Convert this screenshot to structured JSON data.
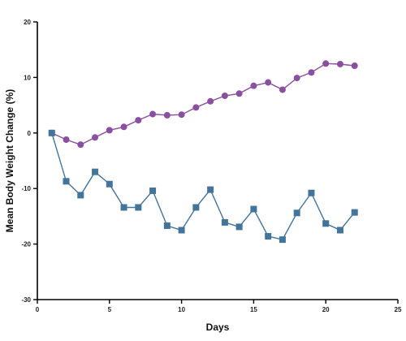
{
  "chart_data": {
    "type": "line",
    "title": "",
    "xlabel": "Days",
    "ylabel": "Mean Body Weight Change (%)",
    "xlim": [
      0,
      25
    ],
    "ylim": [
      -30,
      20
    ],
    "x_ticks": [
      0,
      5,
      10,
      15,
      20,
      25
    ],
    "y_ticks": [
      -30,
      -20,
      -10,
      0,
      10,
      20
    ],
    "grid": false,
    "legend": "none",
    "x": [
      1,
      2,
      3,
      4,
      5,
      6,
      7,
      8,
      9,
      10,
      11,
      12,
      13,
      14,
      15,
      16,
      17,
      18,
      19,
      20,
      21,
      22
    ],
    "series": [
      {
        "color": "#8a4f9e",
        "marker": "circle",
        "values": [
          0,
          -1.2,
          -2.1,
          -0.8,
          0.5,
          1.1,
          2.3,
          3.4,
          3.2,
          3.3,
          4.6,
          5.7,
          6.7,
          7.1,
          8.5,
          9.1,
          7.8,
          9.9,
          10.9,
          12.5,
          12.4,
          12.1
        ]
      },
      {
        "color": "#43749a",
        "marker": "square",
        "values": [
          0,
          -8.7,
          -11.2,
          -7.0,
          -9.2,
          -13.4,
          -13.4,
          -10.4,
          -16.7,
          -17.5,
          -13.4,
          -10.2,
          -16.1,
          -16.9,
          -13.7,
          -18.6,
          -19.2,
          -14.4,
          -10.8,
          -16.3,
          -17.5,
          -14.3
        ]
      }
    ]
  }
}
